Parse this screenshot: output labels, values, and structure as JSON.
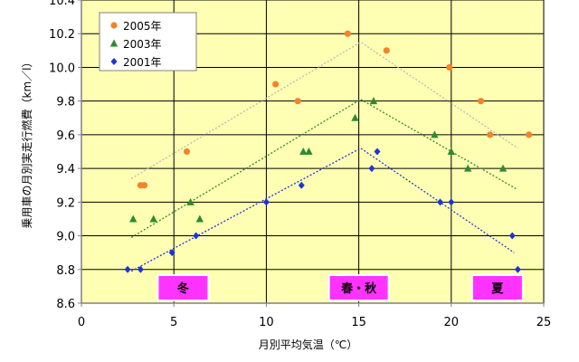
{
  "chart_data": {
    "type": "scatter",
    "xlabel": "月別平均気温（℃）",
    "ylabel": "乗用車の月別実走行燃費（km／l）",
    "xlim": [
      0,
      25
    ],
    "ylim": [
      8.6,
      10.4
    ],
    "x_ticks": [
      0,
      5,
      10,
      15,
      20,
      25
    ],
    "y_ticks": [
      8.6,
      8.8,
      9.0,
      9.2,
      9.4,
      9.6,
      9.8,
      10.0,
      10.2,
      10.4
    ],
    "grid": true,
    "legend_position": "top-left",
    "series": [
      {
        "name": "2005年",
        "color": "#f4832a",
        "marker": "circle",
        "points": [
          [
            3.2,
            9.3
          ],
          [
            3.4,
            9.3
          ],
          [
            5.7,
            9.5
          ],
          [
            10.5,
            9.9
          ],
          [
            11.7,
            9.8
          ],
          [
            14.4,
            10.2
          ],
          [
            16.5,
            10.1
          ],
          [
            19.9,
            10.0
          ],
          [
            21.6,
            9.8
          ],
          [
            22.1,
            9.6
          ],
          [
            24.2,
            9.6
          ]
        ],
        "trend": [
          [
            2.7,
            9.34
          ],
          [
            15.1,
            10.15
          ],
          [
            23.6,
            9.52
          ]
        ]
      },
      {
        "name": "2003年",
        "color": "#2e8b2e",
        "marker": "triangle",
        "points": [
          [
            2.8,
            9.1
          ],
          [
            3.9,
            9.1
          ],
          [
            5.9,
            9.2
          ],
          [
            6.4,
            9.1
          ],
          [
            12.0,
            9.5
          ],
          [
            12.3,
            9.5
          ],
          [
            14.8,
            9.7
          ],
          [
            15.8,
            9.8
          ],
          [
            19.1,
            9.6
          ],
          [
            20.0,
            9.5
          ],
          [
            20.9,
            9.4
          ],
          [
            22.8,
            9.4
          ]
        ],
        "trend": [
          [
            2.7,
            8.99
          ],
          [
            15.1,
            9.81
          ],
          [
            23.5,
            9.28
          ]
        ]
      },
      {
        "name": "2001年",
        "color": "#1f33d6",
        "marker": "diamond",
        "points": [
          [
            2.5,
            8.8
          ],
          [
            3.2,
            8.8
          ],
          [
            4.9,
            8.9
          ],
          [
            6.2,
            9.0
          ],
          [
            10.0,
            9.2
          ],
          [
            11.9,
            9.3
          ],
          [
            15.7,
            9.4
          ],
          [
            16.0,
            9.5
          ],
          [
            19.4,
            9.2
          ],
          [
            20.0,
            9.2
          ],
          [
            23.3,
            9.0
          ],
          [
            23.6,
            8.8
          ]
        ],
        "trend": [
          [
            2.7,
            8.79
          ],
          [
            15.1,
            9.52
          ],
          [
            23.4,
            8.9
          ]
        ]
      }
    ],
    "annotations": [
      {
        "text": "冬",
        "x": 5.5
      },
      {
        "text": "春・秋",
        "x": 15.0
      },
      {
        "text": "夏",
        "x": 22.5
      }
    ]
  },
  "colors": {
    "plot_background": "#ffffb4",
    "season_box": "#ff33ff",
    "trend_line": "#b8b8b8"
  }
}
